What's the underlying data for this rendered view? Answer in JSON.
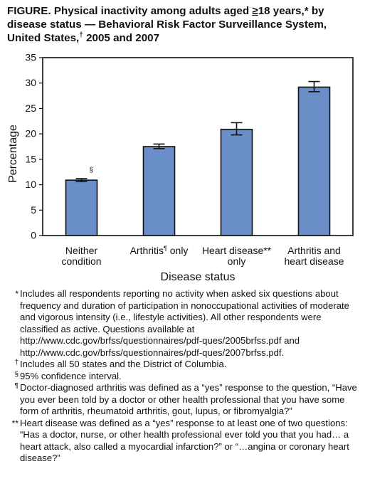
{
  "title": {
    "part1": "FIGURE. Physical inactivity among adults aged ",
    "ge": "≥",
    "part2": "18 years,* by disease status — Behavioral Risk Factor Surveillance System, United States,",
    "dagger": "†",
    "part3": " 2005 and 2007"
  },
  "chart_data": {
    "type": "bar",
    "categories": [
      {
        "line1": "Neither",
        "line2": "condition",
        "mark": ""
      },
      {
        "line1": "Arthritis",
        "line2": "",
        "mark": "¶",
        "line1b": " only"
      },
      {
        "line1": "Heart disease**",
        "line2": "only",
        "mark": ""
      },
      {
        "line1": "Arthritis and",
        "line2": "heart disease",
        "mark": ""
      }
    ],
    "values": [
      10.9,
      17.5,
      20.9,
      29.2
    ],
    "ci_low": [
      10.6,
      17.1,
      19.8,
      28.3
    ],
    "ci_high": [
      11.2,
      18.0,
      22.2,
      30.3
    ],
    "bar_annotations": [
      "§",
      "",
      "",
      ""
    ],
    "ylabel": "Percentage",
    "xlabel": "Disease status",
    "ylim": [
      0,
      35
    ],
    "yticks": [
      0,
      5,
      10,
      15,
      20,
      25,
      30,
      35
    ],
    "grid": false,
    "colors": {
      "bar": "#6a8fc8",
      "stroke": "#111111"
    }
  },
  "footnotes": [
    {
      "mark": "*",
      "text": "Includes all respondents reporting no activity when asked six questions about frequency and duration of participation in nonoccupational activities of moderate and vigorous intensity (i.e., lifestyle activities). All other respondents were classified as active. Questions available at http://www.cdc.gov/brfss/questionnaires/pdf-ques/2005brfss.pdf and http://www.cdc.gov/brfss/questionnaires/pdf-ques/2007brfss.pdf."
    },
    {
      "mark": "†",
      "text": "Includes all 50 states and the District of Columbia."
    },
    {
      "mark": "§",
      "text": "95% confidence interval."
    },
    {
      "mark": "¶",
      "text": "Doctor-diagnosed arthritis was defined as a “yes” response to the question, “Have you ever been told by a doctor or other health professional that you have some form of arthritis, rheumatoid arthritis, gout, lupus, or fibromyalgia?”"
    },
    {
      "mark": "**",
      "text": "Heart disease was defined as a “yes” response to at least one of two questions: “Has a doctor, nurse, or other health professional ever told you that you had… a heart attack, also called a myocardial infarction?” or “…angina or coronary heart disease?”"
    }
  ]
}
